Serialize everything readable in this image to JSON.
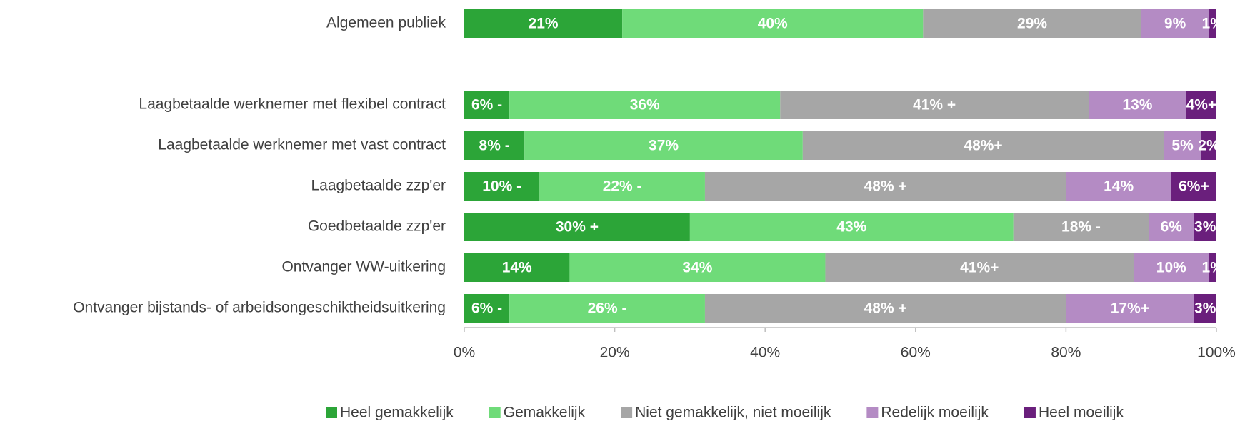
{
  "chart_data": {
    "type": "stacked_barh",
    "categories": [
      "Algemeen publiek",
      null,
      "Laagbetaalde werknemer met flexibel contract",
      "Laagbetaalde werknemer met vast contract",
      "Laagbetaalde zzp'er",
      "Goedbetaalde zzp'er",
      "Ontvanger WW-uitkering",
      "Ontvanger bijstands- of arbeidsongeschiktheidsuitkering"
    ],
    "series": [
      {
        "name": "Heel gemakkelijk",
        "color": "#2ca538",
        "values": [
          21,
          null,
          6,
          8,
          10,
          30,
          14,
          6
        ],
        "value_labels": [
          "21%",
          null,
          "6% -",
          "8% -",
          "10% -",
          "30% +",
          "14%",
          "6% -"
        ]
      },
      {
        "name": "Gemakkelijk",
        "color": "#6fdb79",
        "values": [
          40,
          null,
          36,
          37,
          22,
          43,
          34,
          26
        ],
        "value_labels": [
          "40%",
          null,
          "36%",
          "37%",
          "22% -",
          "43%",
          "34%",
          "26% -"
        ]
      },
      {
        "name": "Niet gemakkelijk, niet moeilijk",
        "color": "#a6a6a6",
        "values": [
          29,
          null,
          41,
          48,
          48,
          18,
          41,
          48
        ],
        "value_labels": [
          "29%",
          null,
          "41% +",
          "48%+",
          "48% +",
          "18% -",
          "41%+",
          "48% +"
        ]
      },
      {
        "name": "Redelijk moeilijk",
        "color": "#b48bc4",
        "values": [
          9,
          null,
          13,
          5,
          14,
          6,
          10,
          17
        ],
        "value_labels": [
          "9%",
          null,
          "13%",
          "5%",
          "14%",
          "6%",
          "10%",
          "17%+"
        ]
      },
      {
        "name": "Heel moeilijk",
        "color": "#6a1f7c",
        "values": [
          1,
          null,
          4,
          2,
          6,
          3,
          1,
          3
        ],
        "value_labels": [
          "1%",
          null,
          "4%+",
          "2%",
          "6%+",
          "3%",
          "1%",
          "3%"
        ]
      }
    ],
    "xlim": [
      0,
      100
    ],
    "xticks": [
      {
        "value": 0,
        "label": "0%"
      },
      {
        "value": 20,
        "label": "20%"
      },
      {
        "value": 40,
        "label": "40%"
      },
      {
        "value": 60,
        "label": "60%"
      },
      {
        "value": 80,
        "label": "80%"
      },
      {
        "value": 100,
        "label": "100%"
      }
    ],
    "legend": "bottom"
  }
}
